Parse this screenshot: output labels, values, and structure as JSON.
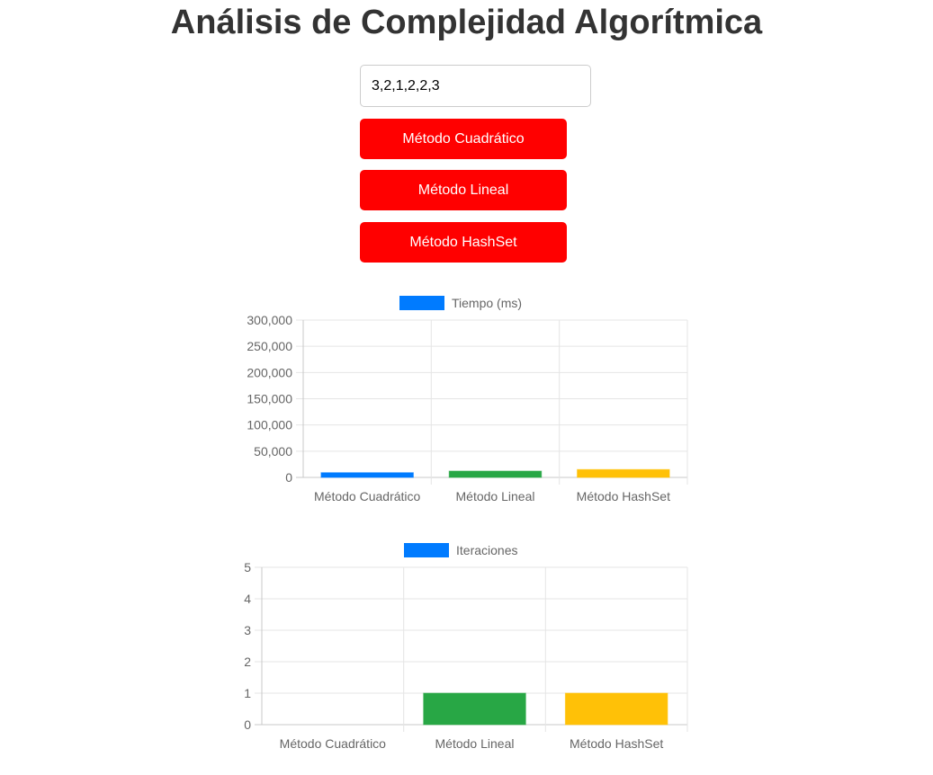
{
  "page": {
    "title": "Análisis de Complejidad Algorítmica"
  },
  "input": {
    "value": "3,2,1,2,2,3"
  },
  "buttons": {
    "quadratic": "Método Cuadrático",
    "linear": "Método Lineal",
    "hashset": "Método HashSet"
  },
  "colors": {
    "button": "#ff0000",
    "legend": "#007bff",
    "quadratic": "#007bff",
    "linear": "#28a745",
    "hashset": "#ffc107"
  },
  "chart_data": [
    {
      "type": "bar",
      "legend": "Tiempo (ms)",
      "legend_position": "top",
      "grid": true,
      "categories": [
        "Método Cuadrático",
        "Método Lineal",
        "Método HashSet"
      ],
      "values": [
        9000,
        12000,
        15000
      ],
      "ylim": [
        0,
        300000
      ],
      "yticks": [
        0,
        50000,
        100000,
        150000,
        200000,
        250000,
        300000
      ],
      "ytick_labels": [
        "0",
        "50,000",
        "100,000",
        "150,000",
        "200,000",
        "250,000",
        "300,000"
      ]
    },
    {
      "type": "bar",
      "legend": "Iteraciones",
      "legend_position": "top",
      "grid": true,
      "categories": [
        "Método Cuadrático",
        "Método Lineal",
        "Método HashSet"
      ],
      "values": [
        0,
        1,
        1
      ],
      "ylim": [
        0,
        5
      ],
      "yticks": [
        0,
        1,
        2,
        3,
        4,
        5
      ],
      "ytick_labels": [
        "0",
        "1",
        "2",
        "3",
        "4",
        "5"
      ]
    }
  ]
}
